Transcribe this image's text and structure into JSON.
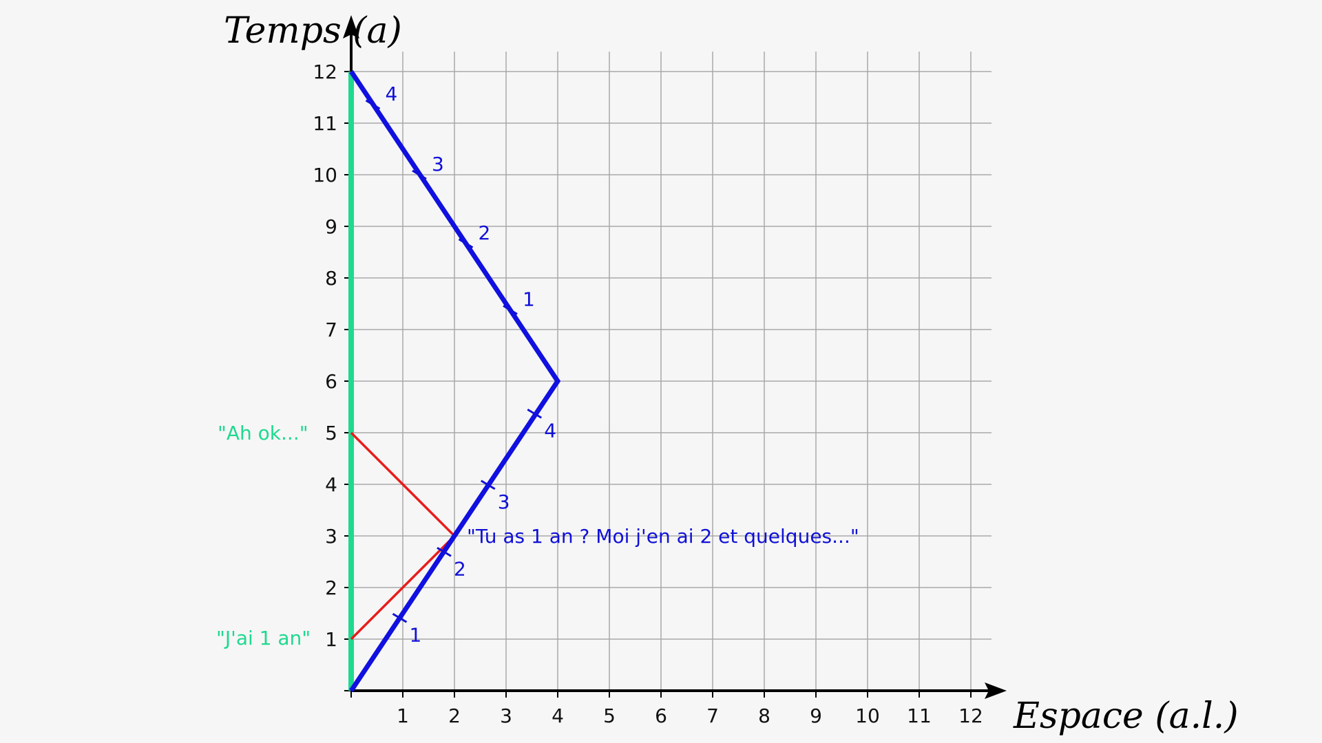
{
  "axes": {
    "x_title": "Espace (a.l.)",
    "y_title": "Temps (a)",
    "x_ticks": [
      "1",
      "2",
      "3",
      "4",
      "5",
      "6",
      "7",
      "8",
      "9",
      "10",
      "11",
      "12"
    ],
    "y_ticks": [
      "1",
      "2",
      "3",
      "4",
      "5",
      "6",
      "7",
      "8",
      "9",
      "10",
      "11",
      "12"
    ],
    "xlim": [
      0,
      12
    ],
    "ylim": [
      0,
      12
    ],
    "grid": true
  },
  "worldlines": {
    "stay_home": {
      "x": [
        0,
        0
      ],
      "y": [
        0,
        12
      ],
      "color": "#1ed98f"
    },
    "traveler": {
      "x": [
        0,
        4,
        0
      ],
      "y": [
        0,
        6,
        12
      ],
      "color": "#1010e0"
    }
  },
  "signals": {
    "outgoing": {
      "x": [
        0,
        2
      ],
      "y": [
        1,
        3
      ],
      "color": "#e81c1c"
    },
    "return": {
      "x": [
        2,
        0
      ],
      "y": [
        3,
        5
      ],
      "color": "#e81c1c"
    }
  },
  "traveler_ticks": [
    {
      "x": 0.94,
      "y": 1.41,
      "label": "1"
    },
    {
      "x": 1.8,
      "y": 2.69,
      "label": "2"
    },
    {
      "x": 2.65,
      "y": 3.99,
      "label": "3"
    },
    {
      "x": 3.55,
      "y": 5.37,
      "label": "4"
    },
    {
      "x": 3.08,
      "y": 7.38,
      "label": "1"
    },
    {
      "x": 2.22,
      "y": 8.67,
      "label": "2"
    },
    {
      "x": 1.32,
      "y": 10.0,
      "label": "3"
    },
    {
      "x": 0.42,
      "y": 11.36,
      "label": "4"
    }
  ],
  "annotations": {
    "green_1": "\"J'ai 1 an\"",
    "green_2": "\"Ah ok...\"",
    "blue_1": "\"Tu as 1 an ? Moi j'en ai 2 et quelques...\""
  }
}
